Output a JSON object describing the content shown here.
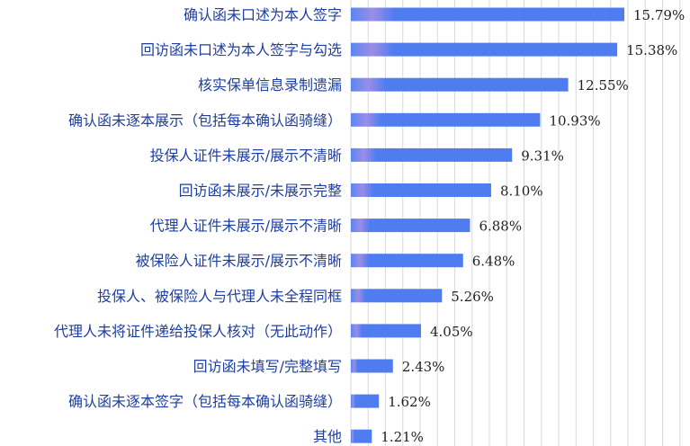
{
  "chart_data": {
    "type": "bar",
    "orientation": "horizontal",
    "categories": [
      "确认函未口述为本人签字",
      "回访函未口述为本人签字与勾选",
      "核实保单信息录制遗漏",
      "确认函未逐本展示（包括每本确认函骑缝）",
      "投保人证件未展示/展示不清晰",
      "回访函未展示/未展示完整",
      "代理人证件未展示/展示不清晰",
      "被保险人证件未展示/展示不清晰",
      "投保人、被保险人与代理人未全程同框",
      "代理人未将证件递给投保人核对（无此动作）",
      "回访函未填写/完整填写",
      "确认函未逐本签字（包括每本确认函骑缝）",
      "其他"
    ],
    "values": [
      15.79,
      15.38,
      12.55,
      10.93,
      9.31,
      8.1,
      6.88,
      6.48,
      5.26,
      4.05,
      2.43,
      1.62,
      1.21
    ],
    "value_labels": [
      "15.79%",
      "15.38%",
      "12.55%",
      "10.93%",
      "9.31%",
      "8.10%",
      "6.88%",
      "6.48%",
      "5.26%",
      "4.05%",
      "2.43%",
      "1.62%",
      "1.21%"
    ],
    "xlim": [
      0,
      20
    ],
    "grid": true,
    "colors": {
      "bar": "#4f7df0",
      "bar_highlight": "#a98ae8",
      "label": "#1f3fa0"
    }
  }
}
